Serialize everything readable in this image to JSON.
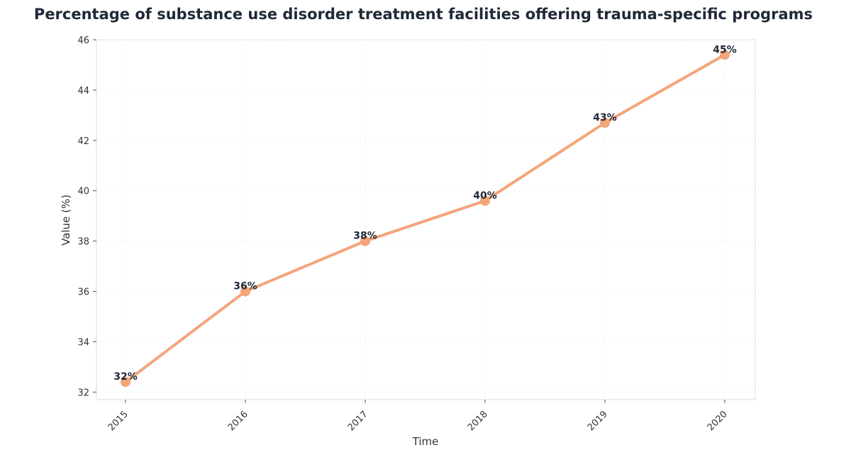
{
  "chart_data": {
    "type": "line",
    "title": "Percentage of substance use disorder treatment facilities offering trauma-specific programs",
    "xlabel": "Time",
    "ylabel": "Value (%)",
    "categories": [
      "2015",
      "2016",
      "2017",
      "2018",
      "2019",
      "2020"
    ],
    "values": [
      32.4,
      36.0,
      38.0,
      39.6,
      42.7,
      45.4
    ],
    "data_labels": [
      "32%",
      "36%",
      "38%",
      "40%",
      "43%",
      "45%"
    ],
    "yticks": [
      32,
      34,
      36,
      38,
      40,
      42,
      44,
      46
    ],
    "ylim": [
      31.7,
      46
    ],
    "grid": true,
    "line_color": "#f4a57a",
    "legend": "none"
  }
}
